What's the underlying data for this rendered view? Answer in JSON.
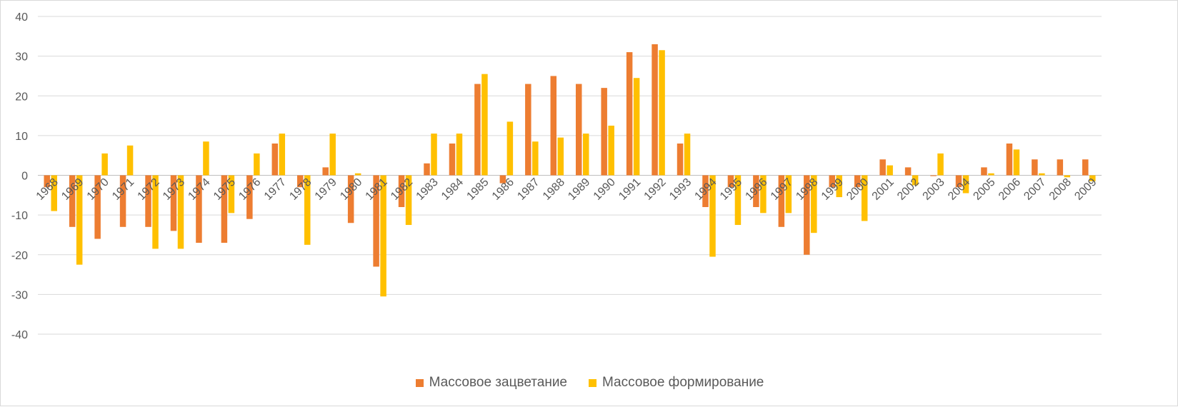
{
  "chart_data": {
    "type": "bar",
    "title": "",
    "xlabel": "",
    "ylabel": "",
    "ylim": [
      -40,
      40
    ],
    "yticks": [
      40,
      30,
      20,
      10,
      0,
      -10,
      -20,
      -30,
      -40
    ],
    "grid": true,
    "legend_position": "bottom",
    "categories": [
      "1968",
      "1969",
      "1970",
      "1971",
      "1972",
      "1973",
      "1974",
      "1975",
      "1976",
      "1977",
      "1978",
      "1979",
      "1980",
      "1981",
      "1982",
      "1983",
      "1984",
      "1985",
      "1986",
      "1987",
      "1988",
      "1989",
      "1990",
      "1991",
      "1992",
      "1993",
      "1994",
      "1995",
      "1996",
      "1997",
      "1998",
      "1999",
      "2000",
      "2001",
      "2002",
      "2003",
      "2004",
      "2005",
      "2006",
      "2007",
      "2008",
      "2009"
    ],
    "series": [
      {
        "name": "Массовое зацветание",
        "color": "#ed7d31",
        "values": [
          -3,
          -13,
          -16,
          -13,
          -13,
          -14,
          -17,
          -17,
          -11,
          8,
          -3,
          2,
          -12,
          -23,
          -8,
          3,
          8,
          23,
          -2,
          23,
          25,
          23,
          22,
          31,
          33,
          8,
          -8,
          -3,
          -8,
          -13,
          -20,
          -3,
          -3,
          4,
          2,
          -0.2,
          -3,
          2,
          8,
          4,
          4,
          4
        ]
      },
      {
        "name": "Массовое формирование",
        "color": "#ffc000",
        "values": [
          -9,
          -22.5,
          5.5,
          7.5,
          -18.5,
          -18.5,
          8.5,
          -9.5,
          5.5,
          10.5,
          -17.5,
          10.5,
          0.5,
          -30.5,
          -12.5,
          10.5,
          10.5,
          25.5,
          13.5,
          8.5,
          9.5,
          10.5,
          12.5,
          24.5,
          31.5,
          10.5,
          -20.5,
          -12.5,
          -9.5,
          -9.5,
          -14.5,
          -5.5,
          -11.5,
          2.5,
          -2.5,
          5.5,
          -4.5,
          0.5,
          6.5,
          0.5,
          -0.5,
          -1.5
        ]
      }
    ]
  }
}
